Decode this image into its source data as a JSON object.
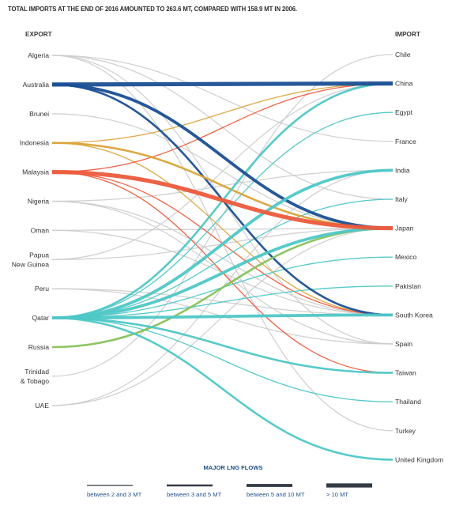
{
  "title": "TOTAL IMPORTS AT THE END OF 2016 AMOUNTED TO 263.6 MT, COMPARED WITH 158.9 MT IN 2006.",
  "export_header": "EXPORT",
  "import_header": "IMPORT",
  "exporters": [
    {
      "id": "algeria",
      "lines": [
        "Algeria"
      ]
    },
    {
      "id": "australia",
      "lines": [
        "Australia"
      ]
    },
    {
      "id": "brunei",
      "lines": [
        "Brunei"
      ]
    },
    {
      "id": "indonesia",
      "lines": [
        "Indonesia"
      ]
    },
    {
      "id": "malaysia",
      "lines": [
        "Malaysia"
      ]
    },
    {
      "id": "nigeria",
      "lines": [
        "Nigeria"
      ]
    },
    {
      "id": "oman",
      "lines": [
        "Oman"
      ]
    },
    {
      "id": "papua-new-guinea",
      "lines": [
        "Papua",
        "New Guinea"
      ]
    },
    {
      "id": "peru",
      "lines": [
        "Peru"
      ]
    },
    {
      "id": "qatar",
      "lines": [
        "Qatar"
      ]
    },
    {
      "id": "russia",
      "lines": [
        "Russia"
      ]
    },
    {
      "id": "trinidad-tobago",
      "lines": [
        "Trinidad",
        "& Tobago"
      ]
    },
    {
      "id": "uae",
      "lines": [
        "UAE"
      ]
    }
  ],
  "importers": [
    {
      "id": "chile",
      "label": "Chile"
    },
    {
      "id": "china",
      "label": "China"
    },
    {
      "id": "egypt",
      "label": "Egypt"
    },
    {
      "id": "france",
      "label": "France"
    },
    {
      "id": "india",
      "label": "India"
    },
    {
      "id": "italy",
      "label": "Italy"
    },
    {
      "id": "japan",
      "label": "Japan"
    },
    {
      "id": "mexico",
      "label": "Mexico"
    },
    {
      "id": "pakistan",
      "label": "Pakistan"
    },
    {
      "id": "south-korea",
      "label": "South Korea"
    },
    {
      "id": "spain",
      "label": "Spain"
    },
    {
      "id": "taiwan",
      "label": "Taiwan"
    },
    {
      "id": "thailand",
      "label": "Thailand"
    },
    {
      "id": "turkey",
      "label": "Turkey"
    },
    {
      "id": "uk",
      "label": "United Kingdom"
    }
  ],
  "exporter_colors": {
    "algeria": "#cccccc",
    "australia": "#1a4f93",
    "brunei": "#cccccc",
    "indonesia": "#d9a43a",
    "malaysia": "#ec5a3c",
    "nigeria": "#cccccc",
    "oman": "#cccccc",
    "papua-new-guinea": "#cccccc",
    "peru": "#cccccc",
    "qatar": "#4ec7c6",
    "russia": "#86c25a",
    "trinidad-tobago": "#cccccc",
    "uae": "#cccccc"
  },
  "flows": [
    {
      "from": "algeria",
      "to": "spain",
      "band": 1
    },
    {
      "from": "algeria",
      "to": "france",
      "band": 1
    },
    {
      "from": "algeria",
      "to": "turkey",
      "band": 1
    },
    {
      "from": "algeria",
      "to": "italy",
      "band": 1
    },
    {
      "from": "australia",
      "to": "china",
      "band": 4
    },
    {
      "from": "australia",
      "to": "japan",
      "band": 3
    },
    {
      "from": "australia",
      "to": "south-korea",
      "band": 2
    },
    {
      "from": "brunei",
      "to": "japan",
      "band": 1
    },
    {
      "from": "indonesia",
      "to": "japan",
      "band": 2
    },
    {
      "from": "indonesia",
      "to": "china",
      "band": 1
    },
    {
      "from": "indonesia",
      "to": "south-korea",
      "band": 1
    },
    {
      "from": "malaysia",
      "to": "japan",
      "band": 4
    },
    {
      "from": "malaysia",
      "to": "china",
      "band": 1
    },
    {
      "from": "malaysia",
      "to": "south-korea",
      "band": 1
    },
    {
      "from": "malaysia",
      "to": "taiwan",
      "band": 1
    },
    {
      "from": "nigeria",
      "to": "india",
      "band": 1
    },
    {
      "from": "nigeria",
      "to": "south-korea",
      "band": 1
    },
    {
      "from": "nigeria",
      "to": "spain",
      "band": 1
    },
    {
      "from": "oman",
      "to": "south-korea",
      "band": 1
    },
    {
      "from": "oman",
      "to": "japan",
      "band": 1
    },
    {
      "from": "papua-new-guinea",
      "to": "china",
      "band": 1
    },
    {
      "from": "papua-new-guinea",
      "to": "japan",
      "band": 1
    },
    {
      "from": "peru",
      "to": "south-korea",
      "band": 1
    },
    {
      "from": "peru",
      "to": "spain",
      "band": 1
    },
    {
      "from": "russia",
      "to": "japan",
      "band": 2
    },
    {
      "from": "trinidad-tobago",
      "to": "chile",
      "band": 1
    },
    {
      "from": "uae",
      "to": "india",
      "band": 1
    },
    {
      "from": "uae",
      "to": "japan",
      "band": 1
    },
    {
      "from": "qatar",
      "to": "china",
      "band": 2
    },
    {
      "from": "qatar",
      "to": "egypt",
      "band": 1
    },
    {
      "from": "qatar",
      "to": "india",
      "band": 3
    },
    {
      "from": "qatar",
      "to": "italy",
      "band": 1
    },
    {
      "from": "qatar",
      "to": "japan",
      "band": 3
    },
    {
      "from": "qatar",
      "to": "mexico",
      "band": 1
    },
    {
      "from": "qatar",
      "to": "pakistan",
      "band": 1
    },
    {
      "from": "qatar",
      "to": "south-korea",
      "band": 3
    },
    {
      "from": "qatar",
      "to": "taiwan",
      "band": 2
    },
    {
      "from": "qatar",
      "to": "thailand",
      "band": 1
    },
    {
      "from": "qatar",
      "to": "uk",
      "band": 2
    }
  ],
  "legend": {
    "title": "MAJOR LNG FLOWS",
    "items": [
      {
        "label": "between 2 and 3 MT",
        "band": 1
      },
      {
        "label": "between 3 and 5 MT",
        "band": 2
      },
      {
        "label": "between 5 and 10 MT",
        "band": 3
      },
      {
        "label": "> 10 MT",
        "band": 4
      }
    ]
  }
}
